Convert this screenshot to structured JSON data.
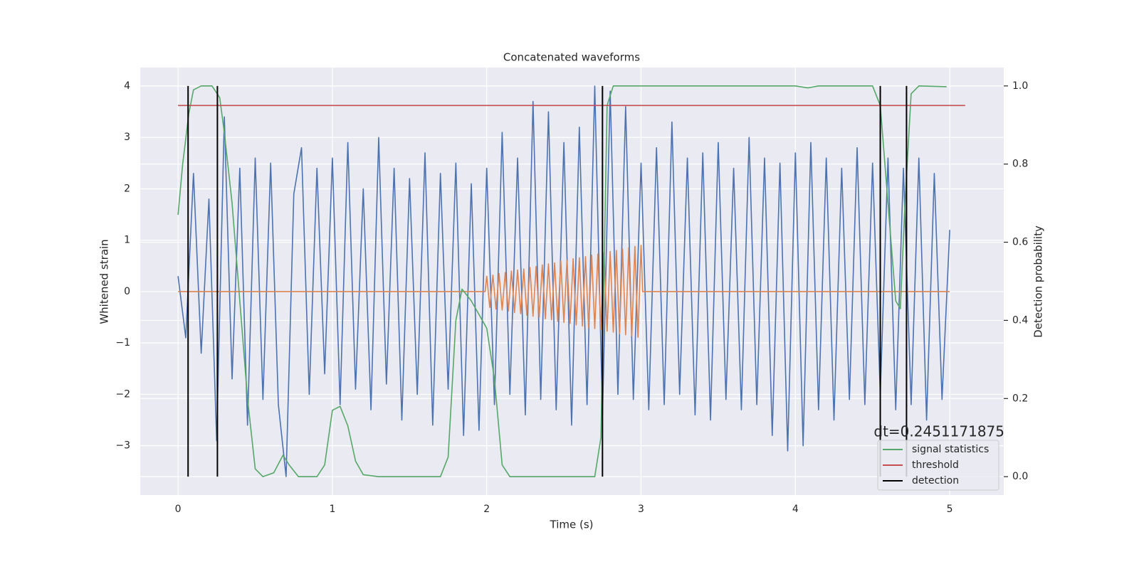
{
  "chart_data": {
    "type": "line",
    "title": "Concatenated waveforms",
    "xlabel": "Time (s)",
    "ylabel": "Whitened strain",
    "y2label": "Detection probability",
    "annotations": [
      "dt=0.2451171875"
    ],
    "xlim": [
      -0.245,
      5.35
    ],
    "ylim": [
      -3.96,
      4.36
    ],
    "y2lim": [
      -0.047,
      1.047
    ],
    "xticks": [
      0,
      1,
      2,
      3,
      4,
      5
    ],
    "yticks": [
      {
        "value": -3,
        "label": "−3"
      },
      {
        "value": -2,
        "label": "−2"
      },
      {
        "value": -1,
        "label": "−1"
      },
      0,
      1,
      2,
      3,
      4
    ],
    "y2ticks": [
      {
        "value": 0,
        "label": "0.0"
      },
      {
        "value": 0.2,
        "label": "0.2"
      },
      {
        "value": 0.4,
        "label": "0.4"
      },
      {
        "value": 0.6,
        "label": "0.6"
      },
      {
        "value": 0.8,
        "label": "0.8"
      },
      {
        "value": 1,
        "label": "1.0"
      }
    ],
    "grid": true,
    "legend": "lower right",
    "series": [
      {
        "kind": "line",
        "color": "#4c72b0",
        "x": [
          0,
          0.05,
          0.1,
          0.15,
          0.2,
          0.25,
          0.3,
          0.35,
          0.4,
          0.45,
          0.5,
          0.55,
          0.6,
          0.65,
          0.7,
          0.75,
          0.8,
          0.85,
          0.9,
          0.95,
          1,
          1.05,
          1.1,
          1.15,
          1.2,
          1.25,
          1.3,
          1.35,
          1.4,
          1.45,
          1.5,
          1.55,
          1.6,
          1.65,
          1.7,
          1.75,
          1.8,
          1.85,
          1.9,
          1.95,
          2,
          2.05,
          2.1,
          2.15,
          2.2,
          2.25,
          2.3,
          2.35,
          2.4,
          2.45,
          2.5,
          2.55,
          2.6,
          2.65,
          2.7,
          2.75,
          2.8,
          2.85,
          2.9,
          2.95,
          3,
          3.05,
          3.1,
          3.15,
          3.2,
          3.25,
          3.3,
          3.35,
          3.4,
          3.45,
          3.5,
          3.55,
          3.6,
          3.65,
          3.7,
          3.75,
          3.8,
          3.85,
          3.9,
          3.95,
          4,
          4.05,
          4.1,
          4.15,
          4.2,
          4.25,
          4.3,
          4.35,
          4.4,
          4.45,
          4.5,
          4.55,
          4.6,
          4.65,
          4.7,
          4.75,
          4.8,
          4.85,
          4.9,
          4.95,
          5
        ],
        "values": [
          0.3,
          -0.9,
          2.3,
          -1.2,
          1.8,
          -2.9,
          3.4,
          -1.7,
          2.4,
          -2.6,
          2.6,
          -2.1,
          2.5,
          -2.2,
          -3.6,
          1.9,
          2.8,
          -2.0,
          2.4,
          -1.6,
          2.6,
          -2.2,
          2.9,
          -1.9,
          2.0,
          -2.3,
          3.0,
          -1.8,
          2.4,
          -2.5,
          2.2,
          -2.0,
          2.7,
          -2.6,
          2.3,
          -1.9,
          2.5,
          -2.8,
          2.1,
          -2.7,
          2.4,
          -2.2,
          3.1,
          -2.0,
          2.6,
          -2.4,
          3.7,
          -2.1,
          3.5,
          -2.3,
          2.9,
          -2.6,
          3.2,
          -2.2,
          4.0,
          -2.4,
          3.9,
          -2.0,
          3.6,
          -2.1,
          2.5,
          -2.3,
          2.8,
          -2.2,
          3.3,
          -2.0,
          2.6,
          -2.4,
          2.7,
          -2.5,
          2.9,
          -2.1,
          2.4,
          -2.3,
          3.0,
          -2.2,
          2.6,
          -2.8,
          2.5,
          -3.1,
          2.7,
          -3.0,
          2.9,
          -2.3,
          2.6,
          -2.5,
          2.4,
          -2.1,
          2.8,
          -2.2,
          2.5,
          -2.0,
          2.6,
          -2.3,
          2.4,
          -2.2,
          2.6,
          -2.5,
          2.3,
          -2.1,
          1.2
        ]
      },
      {
        "kind": "line",
        "color": "#dd8452",
        "x": [
          0,
          1.99,
          2,
          2.02,
          2.04,
          2.06,
          2.08,
          2.1,
          2.12,
          2.14,
          2.16,
          2.18,
          2.2,
          2.22,
          2.24,
          2.26,
          2.28,
          2.3,
          2.32,
          2.34,
          2.36,
          2.38,
          2.4,
          2.42,
          2.44,
          2.46,
          2.48,
          2.5,
          2.52,
          2.54,
          2.56,
          2.58,
          2.6,
          2.62,
          2.64,
          2.66,
          2.68,
          2.7,
          2.72,
          2.74,
          2.76,
          2.78,
          2.8,
          2.82,
          2.84,
          2.86,
          2.88,
          2.9,
          2.92,
          2.94,
          2.96,
          2.98,
          3,
          3.01,
          5
        ],
        "values": [
          0,
          0,
          0.3,
          -0.31,
          0.32,
          -0.34,
          0.35,
          -0.36,
          0.37,
          -0.38,
          0.4,
          -0.41,
          0.42,
          -0.43,
          0.44,
          -0.46,
          0.47,
          -0.48,
          0.49,
          -0.5,
          0.52,
          -0.53,
          0.54,
          -0.55,
          0.56,
          -0.58,
          0.59,
          -0.6,
          0.61,
          -0.62,
          0.64,
          -0.65,
          0.66,
          -0.67,
          0.68,
          -0.7,
          0.71,
          -0.72,
          0.73,
          -0.74,
          0.76,
          -0.77,
          0.78,
          -0.79,
          0.8,
          -0.82,
          0.83,
          -0.84,
          0.85,
          -0.86,
          0.88,
          -0.89,
          0.9,
          0,
          0
        ]
      },
      {
        "kind": "line",
        "name": "signal statistics",
        "color": "#55a868",
        "axis": "y2",
        "x": [
          0,
          0.03,
          0.07,
          0.1,
          0.15,
          0.22,
          0.27,
          0.3,
          0.35,
          0.4,
          0.45,
          0.5,
          0.55,
          0.62,
          0.68,
          0.72,
          0.78,
          0.9,
          0.95,
          1,
          1.05,
          1.1,
          1.15,
          1.2,
          1.3,
          1.7,
          1.75,
          1.8,
          1.84,
          1.9,
          2,
          2.05,
          2.1,
          2.15,
          2.7,
          2.74,
          2.78,
          2.82,
          4,
          4.08,
          4.15,
          4.5,
          4.55,
          4.6,
          4.65,
          4.68,
          4.71,
          4.75,
          4.8,
          4.98
        ],
        "values": [
          0.67,
          0.8,
          0.93,
          0.99,
          1,
          1,
          0.97,
          0.88,
          0.7,
          0.45,
          0.2,
          0.02,
          0,
          0.01,
          0.055,
          0.03,
          0,
          0,
          0.03,
          0.17,
          0.18,
          0.13,
          0.04,
          0.005,
          0,
          0,
          0.05,
          0.4,
          0.48,
          0.45,
          0.38,
          0.25,
          0.03,
          0,
          0,
          0.1,
          0.95,
          1,
          1,
          0.995,
          1,
          1,
          0.95,
          0.7,
          0.45,
          0.43,
          0.7,
          0.98,
          1,
          0.998
        ]
      },
      {
        "kind": "line",
        "name": "threshold",
        "color": "#c44e52",
        "axis": "y2",
        "x": [
          0,
          5.1
        ],
        "values": [
          0.95,
          0.95
        ]
      },
      {
        "kind": "vline",
        "name": "detection",
        "color": "#000000",
        "axis": "y2",
        "x": [
          0.065,
          0.255,
          2.75,
          4.55,
          4.72
        ],
        "ymin": 0,
        "ymax": 1
      }
    ]
  }
}
